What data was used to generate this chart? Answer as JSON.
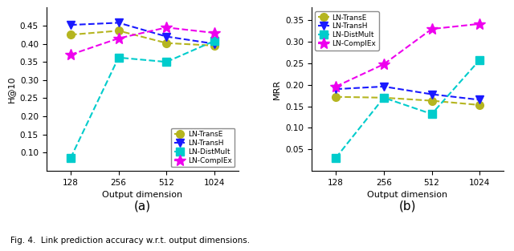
{
  "x": [
    128,
    256,
    512,
    1024
  ],
  "plot_a": {
    "ylabel": "H@10",
    "ylim": [
      0.05,
      0.5
    ],
    "yticks": [
      0.1,
      0.15,
      0.2,
      0.25,
      0.3,
      0.35,
      0.4,
      0.45
    ],
    "TransE": [
      0.425,
      0.436,
      0.402,
      0.395
    ],
    "TransH": [
      0.452,
      0.458,
      0.42,
      0.4
    ],
    "DistMult": [
      0.085,
      0.362,
      0.35,
      0.408
    ],
    "ComplEx": [
      0.37,
      0.415,
      0.445,
      0.43
    ]
  },
  "plot_b": {
    "ylabel": "MRR",
    "ylim": [
      0.0,
      0.38
    ],
    "yticks": [
      0.05,
      0.1,
      0.15,
      0.2,
      0.25,
      0.3,
      0.35
    ],
    "TransE": [
      0.172,
      0.17,
      0.163,
      0.153
    ],
    "TransH": [
      0.19,
      0.196,
      0.178,
      0.165
    ],
    "DistMult": [
      0.03,
      0.17,
      0.132,
      0.258
    ],
    "ComplEx": [
      0.196,
      0.248,
      0.33,
      0.342
    ]
  },
  "colors": {
    "TransE": "#b5b520",
    "TransH": "#1a1aff",
    "DistMult": "#00cccc",
    "ComplEx": "#ee00ee"
  },
  "markers": {
    "TransE": "o",
    "TransH": "v",
    "DistMult": "s",
    "ComplEx": "*"
  },
  "labels": {
    "TransE": "LN-TransE",
    "TransH": "LN-TransH",
    "DistMult": "LN-DistMult",
    "ComplEx": "LN-ComplEx"
  },
  "caption": "Fig. 4.  Link prediction accuracy w.r.t. output dimensions.",
  "sub_a": "(a)",
  "sub_b": "(b)"
}
